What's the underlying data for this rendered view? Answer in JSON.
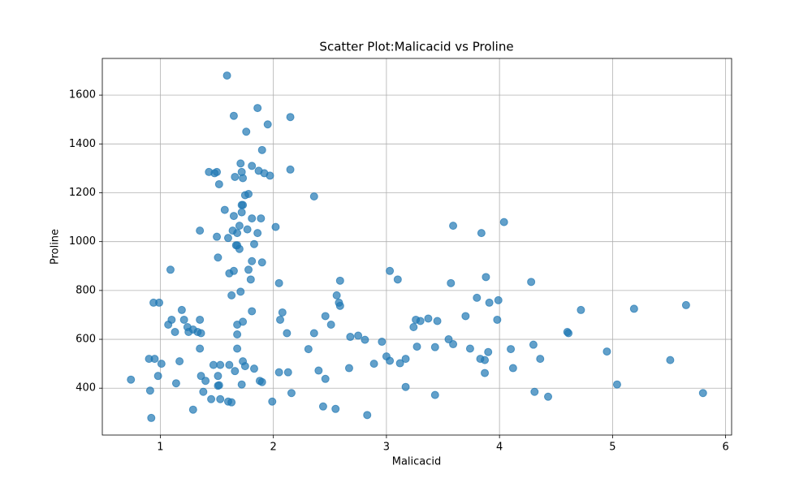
{
  "chart_data": {
    "type": "scatter",
    "title": "Scatter Plot:Malicacid vs Proline",
    "x_label": "Malicacid",
    "y_label": "Proline",
    "color": "#1f77b4",
    "grid": true,
    "xlim": [
      0.487,
      6.053
    ],
    "ylim": [
      208,
      1750
    ],
    "xticks": [
      1,
      2,
      3,
      4,
      5,
      6
    ],
    "yticks": [
      400,
      600,
      800,
      1000,
      1200,
      1400,
      1600
    ],
    "x": [
      1.59,
      1.65,
      1.86,
      2.15,
      1.76,
      1.95,
      1.9,
      1.71,
      1.81,
      2.15,
      1.43,
      1.5,
      1.48,
      1.72,
      1.87,
      1.92,
      1.97,
      1.66,
      1.73,
      1.52,
      1.75,
      1.78,
      2.36,
      1.57,
      1.72,
      1.73,
      1.65,
      1.72,
      1.81,
      1.89,
      1.7,
      2.02,
      1.35,
      1.64,
      1.68,
      1.77,
      1.86,
      1.5,
      1.6,
      1.83,
      1.67,
      1.68,
      1.7,
      1.51,
      1.81,
      1.9,
      1.09,
      1.61,
      1.65,
      1.8,
      1.78,
      2.05,
      1.71,
      1.63,
      0.94,
      0.99,
      1.81,
      2.08,
      1.19,
      1.35,
      1.1,
      1.21,
      1.07,
      1.68,
      1.73,
      2.06,
      1.24,
      1.29,
      1.25,
      1.33,
      1.36,
      1.13,
      1.68,
      2.12,
      1.35,
      1.68,
      2.31,
      1.17,
      1.01,
      0.9,
      0.95,
      1.47,
      1.53,
      1.61,
      1.73,
      1.75,
      1.66,
      1.83,
      2.05,
      2.13,
      0.98,
      1.36,
      1.51,
      0.74,
      1.14,
      1.4,
      1.51,
      1.52,
      1.72,
      1.88,
      1.9,
      0.91,
      1.38,
      2.16,
      1.45,
      1.53,
      1.6,
      1.63,
      1.99,
      1.29,
      0.92,
      2.36,
      2.4,
      2.46,
      2.46,
      2.51,
      2.44,
      2.55,
      2.56,
      2.58,
      2.59,
      2.59,
      2.67,
      2.68,
      2.75,
      2.81,
      2.83,
      2.89,
      2.96,
      3.0,
      3.03,
      3.03,
      3.1,
      3.12,
      3.17,
      3.17,
      3.24,
      3.26,
      3.27,
      3.3,
      3.37,
      3.43,
      3.43,
      3.45,
      3.55,
      3.57,
      3.59,
      3.59,
      3.7,
      3.74,
      3.8,
      3.83,
      3.84,
      3.87,
      3.87,
      3.88,
      3.9,
      3.91,
      3.98,
      3.99,
      4.04,
      4.1,
      4.12,
      4.28,
      4.3,
      4.31,
      4.36,
      4.43,
      4.6,
      4.61,
      4.72,
      4.95,
      5.04,
      5.19,
      5.51,
      5.65,
      5.8
    ],
    "values": [
      1680,
      1515,
      1547,
      1510,
      1450,
      1480,
      1375,
      1320,
      1310,
      1295,
      1285,
      1285,
      1280,
      1285,
      1290,
      1280,
      1270,
      1265,
      1260,
      1235,
      1190,
      1195,
      1185,
      1130,
      1150,
      1150,
      1105,
      1120,
      1095,
      1095,
      1065,
      1060,
      1045,
      1045,
      1035,
      1050,
      1035,
      1020,
      1015,
      990,
      985,
      985,
      970,
      935,
      920,
      915,
      885,
      870,
      880,
      845,
      885,
      830,
      795,
      780,
      750,
      750,
      715,
      710,
      720,
      680,
      680,
      680,
      660,
      660,
      672,
      680,
      650,
      640,
      630,
      630,
      625,
      630,
      620,
      625,
      562,
      562,
      560,
      510,
      500,
      520,
      520,
      495,
      495,
      495,
      510,
      490,
      470,
      480,
      465,
      465,
      450,
      450,
      450,
      435,
      420,
      430,
      410,
      412,
      415,
      430,
      425,
      390,
      385,
      380,
      355,
      355,
      345,
      342,
      345,
      312,
      278,
      625,
      472,
      438,
      695,
      660,
      325,
      315,
      780,
      750,
      737,
      840,
      482,
      610,
      615,
      598,
      290,
      500,
      590,
      530,
      512,
      880,
      845,
      502,
      520,
      405,
      650,
      680,
      570,
      675,
      685,
      568,
      372,
      675,
      600,
      830,
      1065,
      580,
      695,
      562,
      770,
      520,
      1035,
      515,
      462,
      855,
      548,
      750,
      680,
      760,
      1080,
      560,
      482,
      835,
      578,
      385,
      520,
      365,
      630,
      625,
      720,
      550,
      415,
      725,
      515,
      740,
      380
    ]
  }
}
